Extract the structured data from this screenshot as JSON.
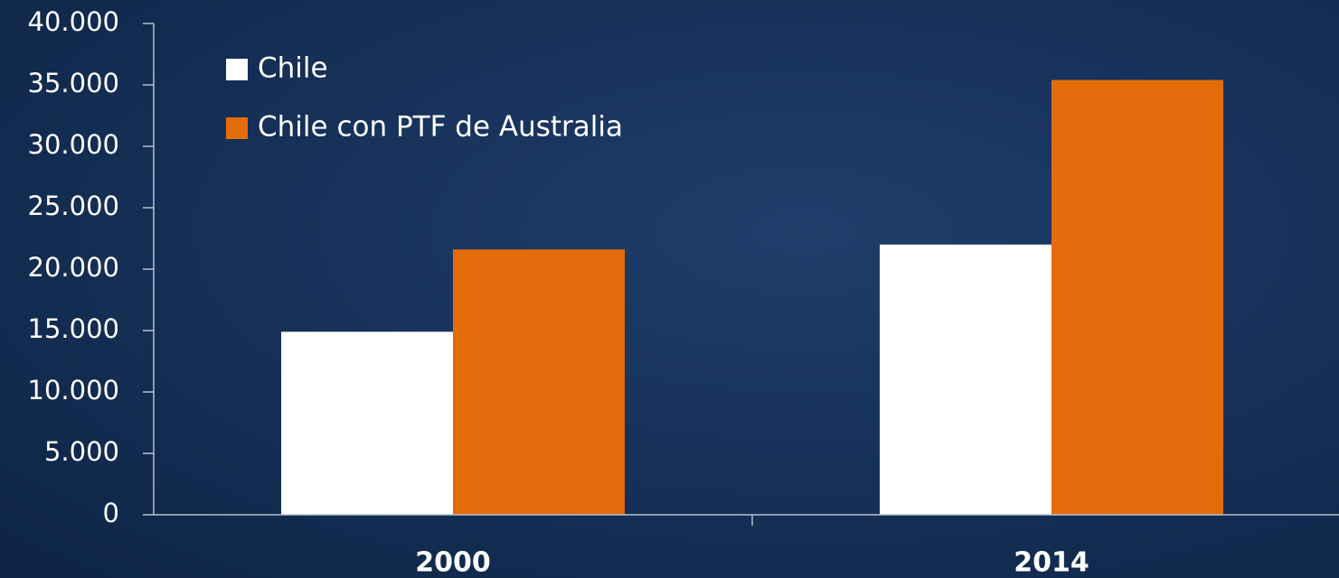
{
  "chart_data": {
    "type": "bar",
    "categories": [
      "2000",
      "2014"
    ],
    "series": [
      {
        "name": "Chile",
        "color": "#ffffff",
        "values": [
          14900,
          22000
        ]
      },
      {
        "name": "Chile con PTF de Australia",
        "color": "#e36c0a",
        "values": [
          21600,
          35400
        ]
      }
    ],
    "ylim": [
      0,
      40000
    ],
    "yticks": [
      0,
      {
        "value": 5000,
        "label": "5.000"
      },
      {
        "value": 10000,
        "label": "10.000"
      },
      {
        "value": 15000,
        "label": "15.000"
      },
      {
        "value": 20000,
        "label": "20.000"
      },
      {
        "value": 25000,
        "label": "25.000"
      },
      {
        "value": 30000,
        "label": "30.000"
      },
      {
        "value": 35000,
        "label": "35.000"
      },
      {
        "value": 40000,
        "label": "40.000"
      }
    ],
    "grid": false,
    "legend": "upper-left"
  }
}
